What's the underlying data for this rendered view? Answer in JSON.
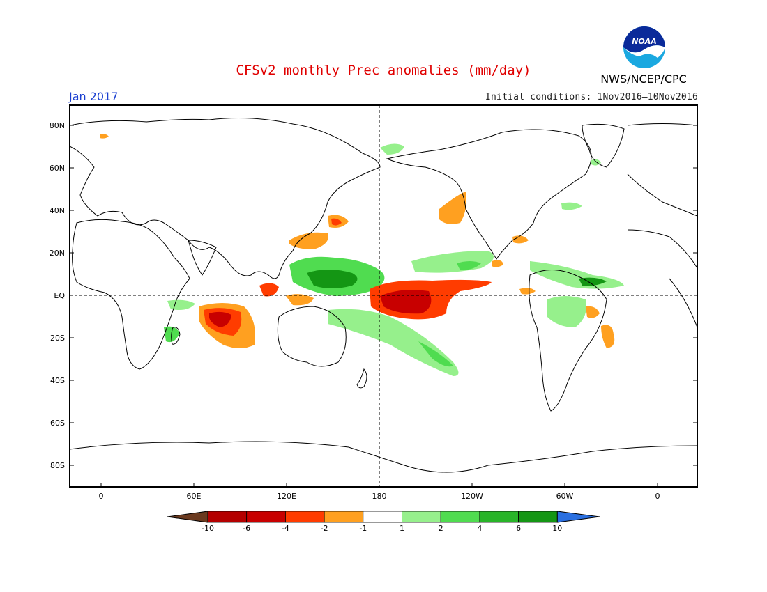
{
  "title": "CFSv2 monthly Prec anomalies (mm/day)",
  "agency": "NWS/NCEP/CPC",
  "month": "Jan 2017",
  "initial_conditions": "Initial conditions: 1Nov2016–10Nov2016",
  "logo": {
    "text": "NOAA",
    "icon": "noaa-logo-icon"
  },
  "axes": {
    "lat_labels": [
      "80N",
      "60N",
      "40N",
      "20N",
      "EQ",
      "20S",
      "40S",
      "60S",
      "80S"
    ],
    "lon_labels": [
      "0",
      "60E",
      "120E",
      "180",
      "120W",
      "60W",
      "0"
    ]
  },
  "colorbar": {
    "labels": [
      "-10",
      "-6",
      "-4",
      "-2",
      "-1",
      "1",
      "2",
      "4",
      "6",
      "10"
    ],
    "colors": [
      "#6b3a1f",
      "#b40000",
      "#c80000",
      "#ff3c00",
      "#ffa020",
      "#ffffff",
      "#96f08c",
      "#50dc50",
      "#28b428",
      "#149614",
      "#2a6fe0"
    ]
  }
}
